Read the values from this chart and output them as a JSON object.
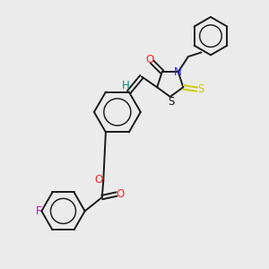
{
  "bg_color": "#ebebeb",
  "bond_color": "#1a1a1a",
  "atom_colors": {
    "N": "#2020ff",
    "O": "#ff2020",
    "S_thione": "#cccc00",
    "S_ring": "#1a1a1a",
    "F": "#cc00cc",
    "H": "#008888",
    "C": "#1a1a1a"
  },
  "font_size": 8.5,
  "linewidth": 1.4
}
